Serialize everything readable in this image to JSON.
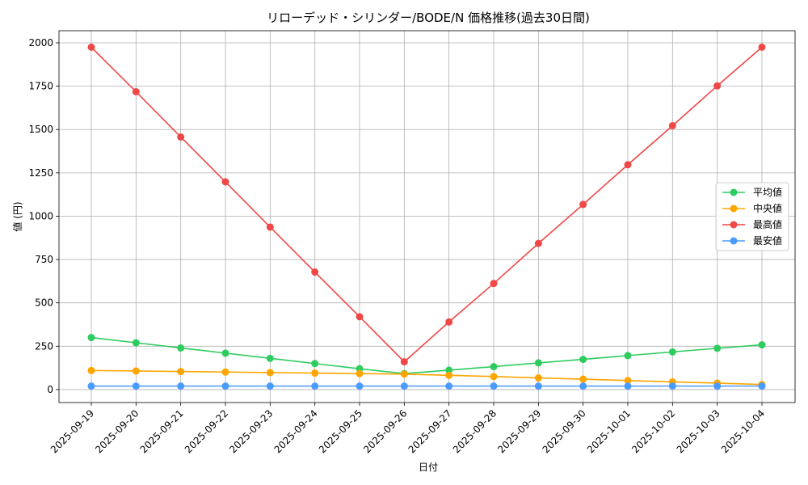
{
  "chart_data": {
    "type": "line",
    "title": "リローデッド・シリンダー/BODE/N 価格推移(過去30日間)",
    "xlabel": "日付",
    "ylabel": "値 (円)",
    "categories": [
      "2025-09-19",
      "2025-09-20",
      "2025-09-21",
      "2025-09-22",
      "2025-09-23",
      "2025-09-24",
      "2025-09-25",
      "2025-09-26",
      "2025-09-27",
      "2025-09-28",
      "2025-09-29",
      "2025-09-30",
      "2025-10-01",
      "2025-10-02",
      "2025-10-03",
      "2025-10-04"
    ],
    "ylim": [
      -75,
      2070
    ],
    "yticks": [
      0,
      250,
      500,
      750,
      1000,
      1250,
      1500,
      1750,
      2000
    ],
    "grid": true,
    "legend_position": "center-right",
    "series": [
      {
        "name": "平均値",
        "color": "#2ecc5f",
        "values": [
          300,
          270,
          240,
          210,
          180,
          150,
          120,
          92,
          112,
          132,
          154,
          174,
          196,
          217,
          238,
          258
        ]
      },
      {
        "name": "中央値",
        "color": "#ffa500",
        "values": [
          110,
          107,
          104,
          101,
          98,
          95,
          92,
          89,
          82,
          75,
          67,
          60,
          52,
          44,
          37,
          29
        ]
      },
      {
        "name": "最高値",
        "color": "#f04747",
        "values": [
          1975,
          1718,
          1457,
          1198,
          937,
          678,
          420,
          160,
          390,
          612,
          843,
          1068,
          1297,
          1522,
          1752,
          1975
        ]
      },
      {
        "name": "最安値",
        "color": "#4a9bff",
        "values": [
          20,
          20,
          20,
          20,
          20,
          20,
          20,
          20,
          20,
          20,
          20,
          20,
          20,
          20,
          20,
          20
        ]
      }
    ]
  }
}
